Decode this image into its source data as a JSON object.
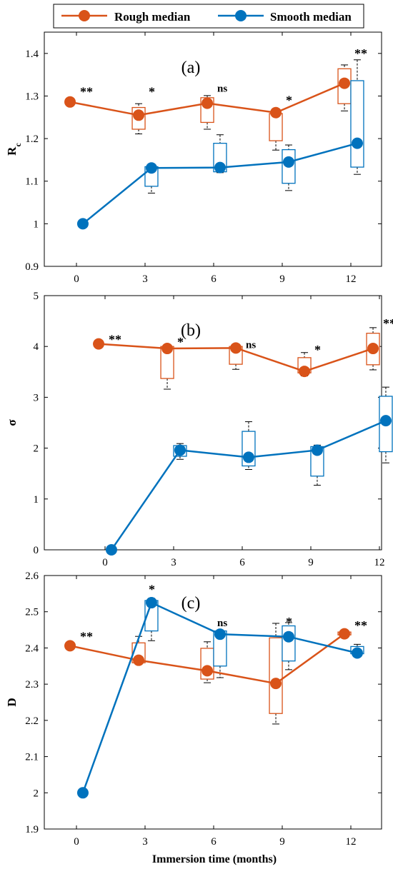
{
  "legend": {
    "items": [
      {
        "label": "Rough median",
        "color": "#D95319"
      },
      {
        "label": "Smooth median",
        "color": "#0072BD"
      }
    ]
  },
  "xlabel": "Immersion time (months)",
  "chart_data": [
    {
      "type": "box",
      "panel_label": "(a)",
      "ylabel": "R",
      "ylabel_sub": "c",
      "x_ticks": [
        0,
        3,
        6,
        9,
        12
      ],
      "ylim": [
        0.9,
        1.45
      ],
      "y_ticks": [
        0.9,
        1,
        1.1,
        1.2,
        1.3,
        1.4
      ],
      "y_tick_labels": [
        "0.9",
        "1",
        "1.1",
        "1.2",
        "1.3",
        "1.4"
      ],
      "grid": false,
      "series": [
        {
          "name": "Rough median",
          "x": [
            0,
            3,
            6,
            9,
            12
          ],
          "median": [
            1.286,
            1.255,
            1.283,
            1.261,
            1.33
          ],
          "boxes": [
            null,
            [
              1.222,
              1.273
            ],
            [
              1.238,
              1.296
            ],
            [
              1.195,
              1.259
            ],
            [
              1.282,
              1.364
            ]
          ],
          "whiskers": [
            null,
            [
              1.211,
              1.282
            ],
            [
              1.222,
              1.301
            ],
            [
              1.173,
              1.268
            ],
            [
              1.265,
              1.373
            ]
          ]
        },
        {
          "name": "Smooth median",
          "x": [
            0,
            3,
            6,
            9,
            12
          ],
          "median": [
            1.0,
            1.131,
            1.132,
            1.145,
            1.189
          ],
          "boxes": [
            null,
            [
              1.088,
              1.134
            ],
            [
              1.122,
              1.189
            ],
            [
              1.095,
              1.174
            ],
            [
              1.133,
              1.336
            ]
          ],
          "whiskers": [
            null,
            [
              1.072,
              1.14
            ],
            [
              1.12,
              1.209
            ],
            [
              1.078,
              1.185
            ],
            [
              1.116,
              1.385
            ]
          ]
        }
      ],
      "annotations": [
        {
          "x": 0,
          "text": "**",
          "y": 1.3
        },
        {
          "x": 3,
          "text": "*",
          "y": 1.3
        },
        {
          "x": 6,
          "text": "ns",
          "y": 1.31
        },
        {
          "x": 9,
          "text": "*",
          "y": 1.28
        },
        {
          "x": 12,
          "text": "**",
          "y": 1.39
        }
      ]
    },
    {
      "type": "box",
      "panel_label": "(b)",
      "ylabel": "σ",
      "x_ticks": [
        0,
        3,
        6,
        9,
        12
      ],
      "ylim": [
        0,
        5
      ],
      "y_ticks": [
        0,
        1,
        2,
        3,
        4,
        5
      ],
      "y_tick_labels": [
        "0",
        "1",
        "2",
        "3",
        "4",
        "5"
      ],
      "grid": false,
      "series": [
        {
          "name": "Rough median",
          "x": [
            0,
            3,
            6,
            9,
            12
          ],
          "median": [
            4.05,
            3.96,
            3.97,
            3.51,
            3.96
          ],
          "boxes": [
            null,
            [
              3.37,
              4.0
            ],
            [
              3.65,
              4.0
            ],
            [
              3.48,
              3.78
            ],
            [
              3.64,
              4.26
            ]
          ],
          "whiskers": [
            null,
            [
              3.16,
              4.03
            ],
            [
              3.55,
              4.02
            ],
            [
              3.42,
              3.88
            ],
            [
              3.54,
              4.37
            ]
          ]
        },
        {
          "name": "Smooth median",
          "x": [
            0,
            3,
            6,
            9,
            12
          ],
          "median": [
            0.0,
            1.96,
            1.82,
            1.96,
            2.54
          ],
          "boxes": [
            null,
            [
              1.84,
              2.05
            ],
            [
              1.65,
              2.33
            ],
            [
              1.45,
              2.03
            ],
            [
              1.93,
              3.02
            ]
          ],
          "whiskers": [
            null,
            [
              1.78,
              2.09
            ],
            [
              1.58,
              2.52
            ],
            [
              1.27,
              2.06
            ],
            [
              1.71,
              3.2
            ]
          ]
        }
      ],
      "annotations": [
        {
          "x": 0,
          "text": "**",
          "y": 4.05
        },
        {
          "x": 3,
          "text": "*",
          "y": 4.0
        },
        {
          "x": 6,
          "text": "ns",
          "y": 3.97
        },
        {
          "x": 9,
          "text": "*",
          "y": 3.85
        },
        {
          "x": 12,
          "text": "**",
          "y": 4.37
        }
      ]
    },
    {
      "type": "box",
      "panel_label": "(c)",
      "ylabel": "D",
      "x_ticks": [
        0,
        3,
        6,
        9,
        12
      ],
      "ylim": [
        1.9,
        2.6
      ],
      "y_ticks": [
        1.9,
        2,
        2.1,
        2.2,
        2.3,
        2.4,
        2.5,
        2.6
      ],
      "y_tick_labels": [
        "1.9",
        "2",
        "2.1",
        "2.2",
        "2.3",
        "2.4",
        "2.5",
        "2.6"
      ],
      "grid": false,
      "series": [
        {
          "name": "Rough median",
          "x": [
            0,
            3,
            6,
            9,
            12
          ],
          "median": [
            2.406,
            2.366,
            2.337,
            2.302,
            2.439
          ],
          "boxes": [
            null,
            [
              2.359,
              2.414
            ],
            [
              2.314,
              2.399
            ],
            [
              2.219,
              2.428
            ],
            [
              2.436,
              2.444
            ]
          ],
          "whiskers": [
            null,
            [
              2.355,
              2.432
            ],
            [
              2.304,
              2.417
            ],
            [
              2.19,
              2.468
            ],
            [
              2.432,
              2.446
            ]
          ]
        },
        {
          "name": "Smooth median",
          "x": [
            0,
            3,
            6,
            9,
            12
          ],
          "median": [
            2.0,
            2.525,
            2.438,
            2.431,
            2.386
          ],
          "boxes": [
            null,
            [
              2.447,
              2.531
            ],
            [
              2.35,
              2.447
            ],
            [
              2.364,
              2.461
            ],
            [
              2.384,
              2.404
            ]
          ],
          "whiskers": [
            null,
            [
              2.42,
              2.537
            ],
            [
              2.318,
              2.447
            ],
            [
              2.34,
              2.47
            ],
            [
              2.384,
              2.41
            ]
          ]
        }
      ],
      "annotations": [
        {
          "x": 0,
          "text": "**",
          "y": 2.42
        },
        {
          "x": 3,
          "text": "*",
          "y": 2.55
        },
        {
          "x": 6,
          "text": "ns",
          "y": 2.46
        },
        {
          "x": 9,
          "text": "*",
          "y": 2.46
        },
        {
          "x": 12,
          "text": "**",
          "y": 2.45
        }
      ]
    }
  ]
}
